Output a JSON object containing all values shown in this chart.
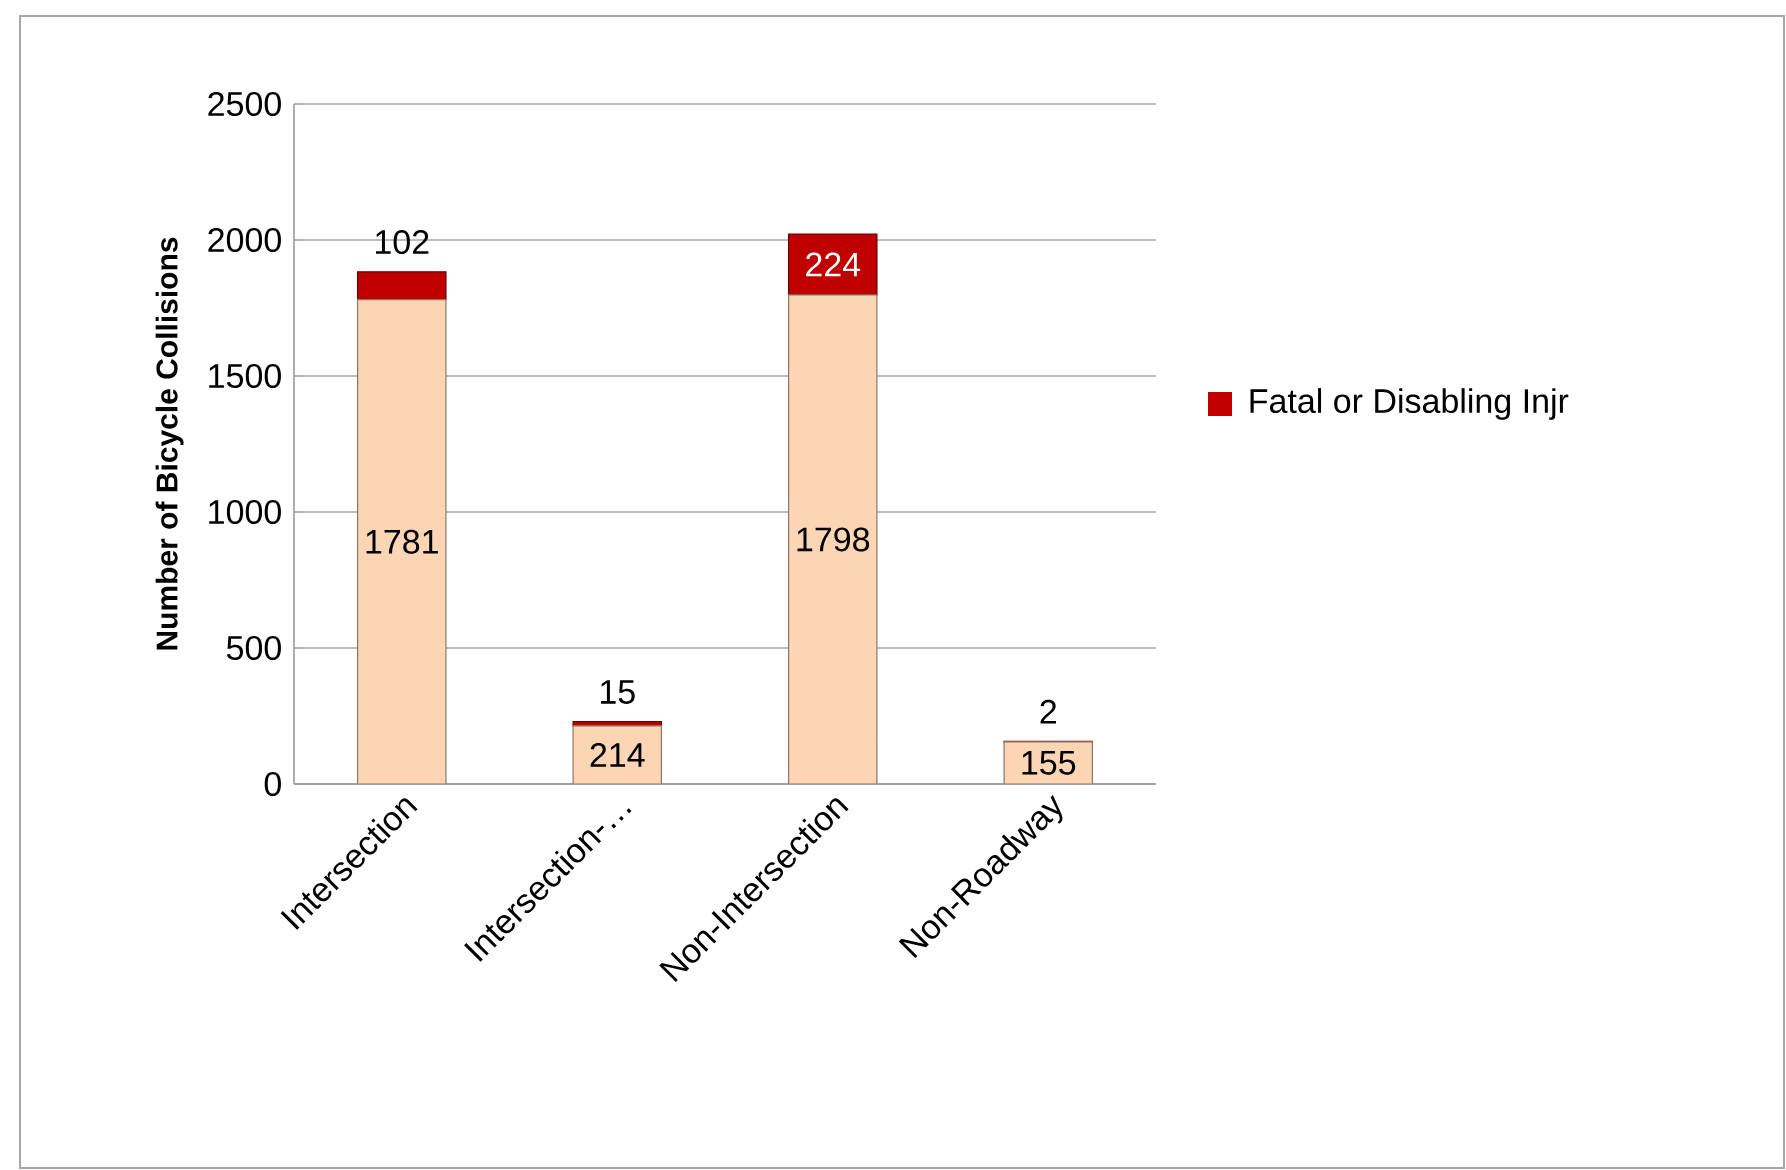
{
  "chart_data": {
    "type": "bar",
    "stacked": true,
    "ylabel": "Number of Bicycle Collisions",
    "categories": [
      "Intersection",
      "Intersection-…",
      "Non-Intersection",
      "Non-Roadway"
    ],
    "series": [
      {
        "color": "#fcd5b5",
        "values": [
          1781,
          214,
          1798,
          155
        ]
      },
      {
        "name": "Fatal or Disabling Injr",
        "color": "#c00000",
        "values": [
          102,
          15,
          224,
          2
        ]
      }
    ],
    "ylim": [
      0,
      2500
    ],
    "yticks": [
      0,
      500,
      1000,
      1500,
      2000,
      2500
    ],
    "grid": "y",
    "legend": "right",
    "data_labels": true
  }
}
